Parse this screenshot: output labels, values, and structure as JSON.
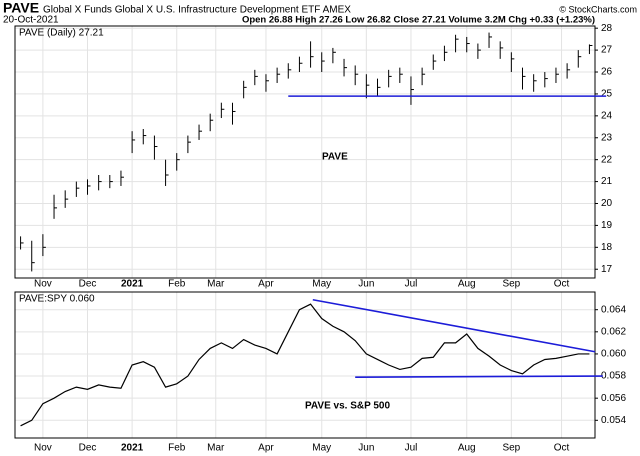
{
  "header": {
    "symbol": "PAVE",
    "description": "Global X Funds Global X U.S. Infrastructure Development ETF  AMEX",
    "source": "© StockCharts.com",
    "date": "20-Oct-2021",
    "quote": "Open 26.88  High 27.26  Low 26.82  Close 27.21  Volume 3.2M  Chg +0.33 (+1.23%)"
  },
  "chart_data": [
    {
      "type": "ohlc",
      "legend": "PAVE (Daily) 27.21",
      "annotation": "PAVE",
      "color": "#000000",
      "grid": true,
      "x": [
        0,
        1,
        2,
        3,
        4,
        5,
        6,
        7,
        8,
        9,
        10,
        11,
        12,
        13,
        14,
        15,
        16,
        17,
        18,
        19,
        20,
        21,
        22,
        23,
        24,
        25,
        26,
        27,
        28,
        29,
        30,
        31,
        32,
        33,
        34,
        35,
        36,
        37,
        38,
        39,
        40,
        41,
        42,
        43,
        44,
        45,
        46,
        47,
        48,
        49,
        50,
        51
      ],
      "high": [
        18.5,
        18.3,
        18.6,
        20.4,
        20.6,
        21.0,
        21.1,
        21.3,
        21.3,
        21.5,
        23.3,
        23.4,
        23.1,
        22.0,
        22.3,
        23.1,
        23.6,
        24.1,
        24.6,
        24.6,
        25.6,
        26.1,
        25.9,
        26.2,
        26.4,
        26.7,
        27.4,
        26.9,
        27.1,
        26.6,
        26.3,
        25.9,
        25.7,
        26.1,
        26.2,
        25.8,
        26.2,
        26.8,
        27.2,
        27.7,
        27.6,
        27.3,
        27.8,
        27.4,
        26.9,
        26.2,
        25.9,
        26.0,
        26.2,
        26.4,
        27.0,
        27.26
      ],
      "low": [
        17.9,
        16.9,
        17.6,
        19.3,
        19.8,
        20.3,
        20.4,
        20.6,
        20.7,
        20.8,
        22.3,
        22.7,
        22.0,
        20.8,
        21.5,
        22.3,
        22.9,
        23.3,
        23.9,
        23.6,
        24.8,
        25.4,
        25.1,
        25.5,
        25.7,
        26.0,
        26.2,
        26.0,
        26.4,
        25.8,
        25.4,
        24.8,
        24.9,
        25.3,
        25.5,
        24.5,
        25.4,
        26.1,
        26.5,
        26.9,
        26.9,
        26.6,
        27.1,
        26.6,
        26.0,
        25.2,
        25.1,
        25.3,
        25.5,
        25.7,
        26.2,
        26.82
      ],
      "close": [
        18.2,
        17.3,
        18.0,
        19.8,
        20.2,
        20.7,
        20.8,
        21.0,
        21.0,
        21.2,
        22.9,
        23.1,
        22.6,
        21.3,
        22.0,
        22.8,
        23.3,
        23.8,
        24.3,
        24.2,
        25.3,
        25.8,
        25.6,
        25.9,
        26.1,
        26.4,
        26.7,
        26.5,
        26.9,
        26.2,
        25.9,
        25.4,
        25.3,
        25.8,
        25.9,
        25.2,
        25.9,
        26.5,
        26.9,
        27.5,
        27.3,
        27.0,
        27.6,
        27.1,
        26.6,
        25.8,
        25.6,
        25.7,
        25.9,
        26.1,
        26.7,
        27.21
      ],
      "xlim": [
        -0.5,
        51.5
      ],
      "xticks": [
        {
          "value": 2,
          "label": "Nov"
        },
        {
          "value": 6,
          "label": "Dec"
        },
        {
          "value": 10,
          "label": "2021"
        },
        {
          "value": 14,
          "label": "Feb"
        },
        {
          "value": 17.5,
          "label": "Mar"
        },
        {
          "value": 22,
          "label": "Apr"
        },
        {
          "value": 27,
          "label": "May"
        },
        {
          "value": 31,
          "label": "Jun"
        },
        {
          "value": 35,
          "label": "Jul"
        },
        {
          "value": 40,
          "label": "Aug"
        },
        {
          "value": 44,
          "label": "Sep"
        },
        {
          "value": 48.5,
          "label": "Oct"
        }
      ],
      "ylim": [
        16.6,
        28.1
      ],
      "yticks": [
        17,
        18,
        19,
        20,
        21,
        22,
        23,
        24,
        25,
        26,
        27,
        28
      ],
      "trendlines": [
        {
          "color": "#1c1cd8",
          "x": [
            24,
            52.5
          ],
          "y": [
            24.9,
            24.9
          ]
        }
      ]
    },
    {
      "type": "line",
      "legend": "PAVE:SPY 0.060",
      "annotation": "PAVE vs. S&P 500",
      "color": "#000000",
      "grid": true,
      "x": [
        0,
        1,
        2,
        3,
        4,
        5,
        6,
        7,
        8,
        9,
        10,
        11,
        12,
        13,
        14,
        15,
        16,
        17,
        18,
        19,
        20,
        21,
        22,
        23,
        24,
        25,
        26,
        27,
        28,
        29,
        30,
        31,
        32,
        33,
        34,
        35,
        36,
        37,
        38,
        39,
        40,
        41,
        42,
        43,
        44,
        45,
        46,
        47,
        48,
        49,
        50,
        51
      ],
      "values": [
        0.0535,
        0.054,
        0.0555,
        0.056,
        0.0566,
        0.057,
        0.0568,
        0.0572,
        0.057,
        0.0569,
        0.059,
        0.0593,
        0.0588,
        0.057,
        0.0573,
        0.058,
        0.0595,
        0.0605,
        0.061,
        0.0605,
        0.0613,
        0.0608,
        0.0605,
        0.06,
        0.062,
        0.064,
        0.0645,
        0.0632,
        0.0625,
        0.062,
        0.0612,
        0.06,
        0.0595,
        0.059,
        0.0586,
        0.0588,
        0.0596,
        0.0597,
        0.061,
        0.061,
        0.0618,
        0.0605,
        0.0598,
        0.059,
        0.0585,
        0.0582,
        0.059,
        0.0595,
        0.0596,
        0.0598,
        0.06,
        0.06
      ],
      "xlim": [
        -0.5,
        51.5
      ],
      "xticks": [
        {
          "value": 2,
          "label": "Nov"
        },
        {
          "value": 6,
          "label": "Dec"
        },
        {
          "value": 10,
          "label": "2021"
        },
        {
          "value": 14,
          "label": "Feb"
        },
        {
          "value": 17.5,
          "label": "Mar"
        },
        {
          "value": 22,
          "label": "Apr"
        },
        {
          "value": 27,
          "label": "May"
        },
        {
          "value": 31,
          "label": "Jun"
        },
        {
          "value": 35,
          "label": "Jul"
        },
        {
          "value": 40,
          "label": "Aug"
        },
        {
          "value": 44,
          "label": "Sep"
        },
        {
          "value": 48.5,
          "label": "Oct"
        }
      ],
      "ylim": [
        0.0524,
        0.0656
      ],
      "yticks": [
        0.054,
        0.056,
        0.058,
        {
          "value": 0.06,
          "label": "0.060"
        },
        0.062,
        0.064
      ],
      "trendlines": [
        {
          "color": "#1c1cd8",
          "x": [
            26.2,
            51.5
          ],
          "y": [
            0.0649,
            0.0602
          ]
        },
        {
          "color": "#1c1cd8",
          "x": [
            30,
            52.2
          ],
          "y": [
            0.0579,
            0.058
          ]
        }
      ]
    }
  ]
}
